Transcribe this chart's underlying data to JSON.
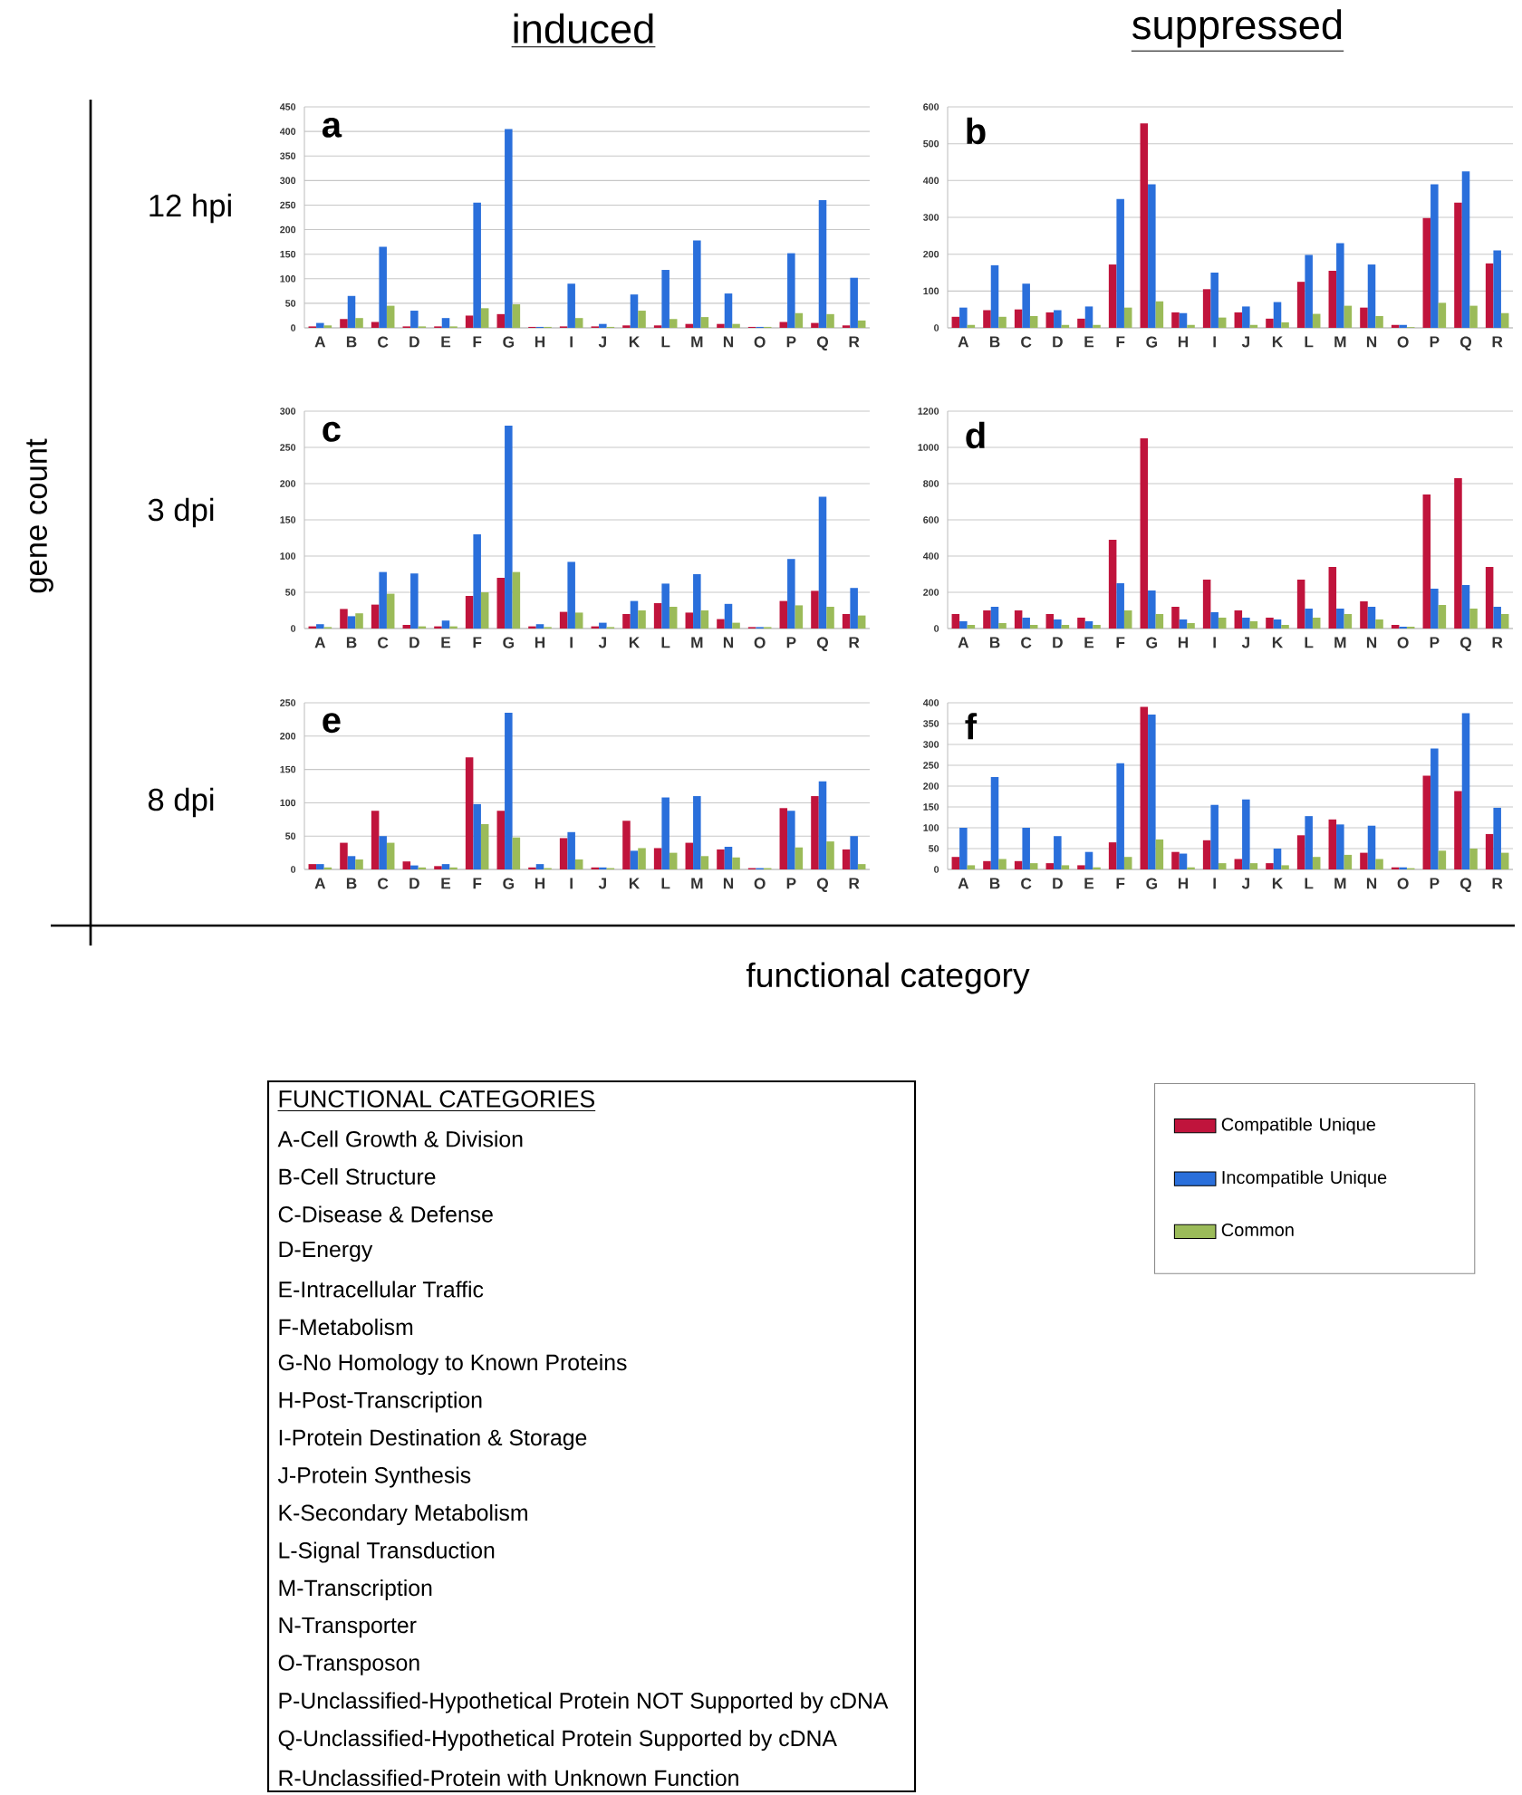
{
  "chart_data": [
    {
      "type": "bar",
      "title": "induced",
      "annotations": [
        "a",
        "12 hpi"
      ],
      "categories": [
        "A",
        "B",
        "C",
        "D",
        "E",
        "F",
        "G",
        "H",
        "I",
        "J",
        "K",
        "L",
        "M",
        "N",
        "O",
        "P",
        "Q",
        "R"
      ],
      "ylim": [
        0,
        450
      ],
      "yticks": [
        0,
        50,
        100,
        150,
        200,
        250,
        300,
        350,
        400,
        450
      ],
      "grid": "y",
      "legend": "bottom right",
      "series": [
        {
          "name": "Compatible Unique",
          "color": "#c0143c",
          "values": [
            3,
            18,
            12,
            3,
            3,
            25,
            28,
            2,
            3,
            3,
            5,
            5,
            8,
            8,
            2,
            12,
            10,
            5
          ]
        },
        {
          "name": "Incompatible Unique",
          "color": "#2a6fdb",
          "values": [
            10,
            65,
            165,
            35,
            20,
            255,
            405,
            2,
            90,
            8,
            68,
            118,
            178,
            70,
            2,
            152,
            260,
            102
          ]
        },
        {
          "name": "Common",
          "color": "#9bbb59",
          "values": [
            5,
            20,
            45,
            3,
            3,
            40,
            48,
            2,
            20,
            2,
            35,
            18,
            22,
            8,
            2,
            30,
            28,
            15
          ]
        }
      ]
    },
    {
      "type": "bar",
      "title": "suppressed",
      "annotations": [
        "b"
      ],
      "categories": [
        "A",
        "B",
        "C",
        "D",
        "E",
        "F",
        "G",
        "H",
        "I",
        "J",
        "K",
        "L",
        "M",
        "N",
        "O",
        "P",
        "Q",
        "R"
      ],
      "ylim": [
        0,
        600
      ],
      "yticks": [
        0,
        100,
        200,
        300,
        400,
        500,
        600
      ],
      "grid": "y",
      "series": [
        {
          "color": "#c0143c",
          "values": [
            30,
            48,
            50,
            42,
            25,
            172,
            555,
            42,
            105,
            42,
            25,
            125,
            155,
            55,
            8,
            298,
            340,
            175
          ]
        },
        {
          "color": "#2a6fdb",
          "values": [
            55,
            170,
            120,
            48,
            58,
            350,
            390,
            40,
            150,
            58,
            70,
            198,
            230,
            172,
            8,
            390,
            425,
            210
          ]
        },
        {
          "color": "#9bbb59",
          "values": [
            8,
            30,
            32,
            8,
            8,
            55,
            72,
            8,
            28,
            8,
            15,
            38,
            60,
            32,
            2,
            68,
            60,
            40
          ]
        }
      ]
    },
    {
      "type": "bar",
      "ylabel": "gene count",
      "annotations": [
        "c",
        "3 dpi"
      ],
      "categories": [
        "A",
        "B",
        "C",
        "D",
        "E",
        "F",
        "G",
        "H",
        "I",
        "J",
        "K",
        "L",
        "M",
        "N",
        "O",
        "P",
        "Q",
        "R"
      ],
      "ylim": [
        0,
        300
      ],
      "yticks": [
        0,
        50,
        100,
        150,
        200,
        250,
        300
      ],
      "grid": "y",
      "series": [
        {
          "color": "#c0143c",
          "values": [
            3,
            27,
            33,
            5,
            3,
            45,
            70,
            3,
            23,
            3,
            20,
            35,
            22,
            13,
            2,
            38,
            52,
            20
          ]
        },
        {
          "color": "#2a6fdb",
          "values": [
            6,
            17,
            78,
            76,
            11,
            130,
            280,
            6,
            92,
            8,
            38,
            62,
            75,
            34,
            2,
            96,
            182,
            56
          ]
        },
        {
          "color": "#9bbb59",
          "values": [
            2,
            21,
            48,
            3,
            3,
            50,
            78,
            2,
            22,
            2,
            25,
            30,
            25,
            8,
            2,
            32,
            30,
            18
          ]
        }
      ]
    },
    {
      "type": "bar",
      "annotations": [
        "d"
      ],
      "categories": [
        "A",
        "B",
        "C",
        "D",
        "E",
        "F",
        "G",
        "H",
        "I",
        "J",
        "K",
        "L",
        "M",
        "N",
        "O",
        "P",
        "Q",
        "R"
      ],
      "ylim": [
        0,
        1200
      ],
      "yticks": [
        0,
        200,
        400,
        600,
        800,
        1000,
        1200
      ],
      "grid": "y",
      "series": [
        {
          "color": "#c0143c",
          "values": [
            80,
            100,
            100,
            80,
            60,
            490,
            1050,
            120,
            270,
            100,
            60,
            270,
            340,
            150,
            20,
            740,
            830,
            340
          ]
        },
        {
          "color": "#2a6fdb",
          "values": [
            40,
            120,
            60,
            50,
            40,
            250,
            210,
            50,
            90,
            60,
            50,
            110,
            110,
            120,
            10,
            220,
            240,
            120
          ]
        },
        {
          "color": "#9bbb59",
          "values": [
            20,
            30,
            20,
            20,
            20,
            100,
            80,
            30,
            60,
            40,
            20,
            60,
            80,
            50,
            10,
            130,
            110,
            80
          ]
        }
      ]
    },
    {
      "type": "bar",
      "xlabel": "functional category",
      "annotations": [
        "e",
        "8 dpi"
      ],
      "categories": [
        "A",
        "B",
        "C",
        "D",
        "E",
        "F",
        "G",
        "H",
        "I",
        "J",
        "K",
        "L",
        "M",
        "N",
        "O",
        "P",
        "Q",
        "R"
      ],
      "ylim": [
        0,
        250
      ],
      "yticks": [
        0,
        50,
        100,
        150,
        200,
        250
      ],
      "grid": "y",
      "series": [
        {
          "color": "#c0143c",
          "values": [
            8,
            40,
            88,
            12,
            5,
            168,
            88,
            3,
            47,
            3,
            73,
            32,
            40,
            30,
            2,
            92,
            110,
            30
          ]
        },
        {
          "color": "#2a6fdb",
          "values": [
            8,
            20,
            50,
            6,
            8,
            98,
            235,
            8,
            56,
            3,
            28,
            108,
            110,
            34,
            2,
            88,
            132,
            50
          ]
        },
        {
          "color": "#9bbb59",
          "values": [
            3,
            15,
            40,
            3,
            3,
            68,
            48,
            2,
            15,
            2,
            32,
            25,
            20,
            18,
            2,
            33,
            42,
            8
          ]
        }
      ]
    },
    {
      "type": "bar",
      "annotations": [
        "f"
      ],
      "categories": [
        "A",
        "B",
        "C",
        "D",
        "E",
        "F",
        "G",
        "H",
        "I",
        "J",
        "K",
        "L",
        "M",
        "N",
        "O",
        "P",
        "Q",
        "R"
      ],
      "ylim": [
        0,
        400
      ],
      "yticks": [
        0,
        50,
        100,
        150,
        200,
        250,
        300,
        350,
        400
      ],
      "grid": "y",
      "series": [
        {
          "color": "#c0143c",
          "values": [
            30,
            20,
            20,
            15,
            10,
            65,
            390,
            42,
            70,
            25,
            15,
            82,
            120,
            40,
            5,
            225,
            188,
            85
          ]
        },
        {
          "color": "#2a6fdb",
          "values": [
            100,
            222,
            100,
            80,
            42,
            255,
            372,
            38,
            155,
            168,
            50,
            128,
            108,
            105,
            5,
            290,
            375,
            148
          ]
        },
        {
          "color": "#9bbb59",
          "values": [
            10,
            25,
            15,
            10,
            5,
            30,
            72,
            5,
            15,
            15,
            10,
            30,
            35,
            25,
            3,
            45,
            50,
            40
          ]
        }
      ]
    },
    {
      "type": "other",
      "title": "FUNCTIONAL CATEGORIES",
      "annotations": [
        "A-Cell Growth & Division",
        "B-Cell Structure",
        "C-Disease & Defense",
        "D-Energy",
        "E-Intracellular Traffic",
        "F-Metabolism",
        "G-No Homology to Known Proteins",
        "H-Post-Transcription",
        "I-Protein Destination & Storage",
        "J-Protein Synthesis",
        "K-Secondary Metabolism",
        "L-Signal Transduction",
        "M-Transcription",
        "N-Transporter",
        "O-Transposon",
        "P-Unclassified-Hypothetical Protein NOT Supported by cDNA",
        "Q-Unclassified-Hypothetical Protein Supported by cDNA",
        "R-Unclassified-Protein with Unknown Function"
      ]
    }
  ]
}
